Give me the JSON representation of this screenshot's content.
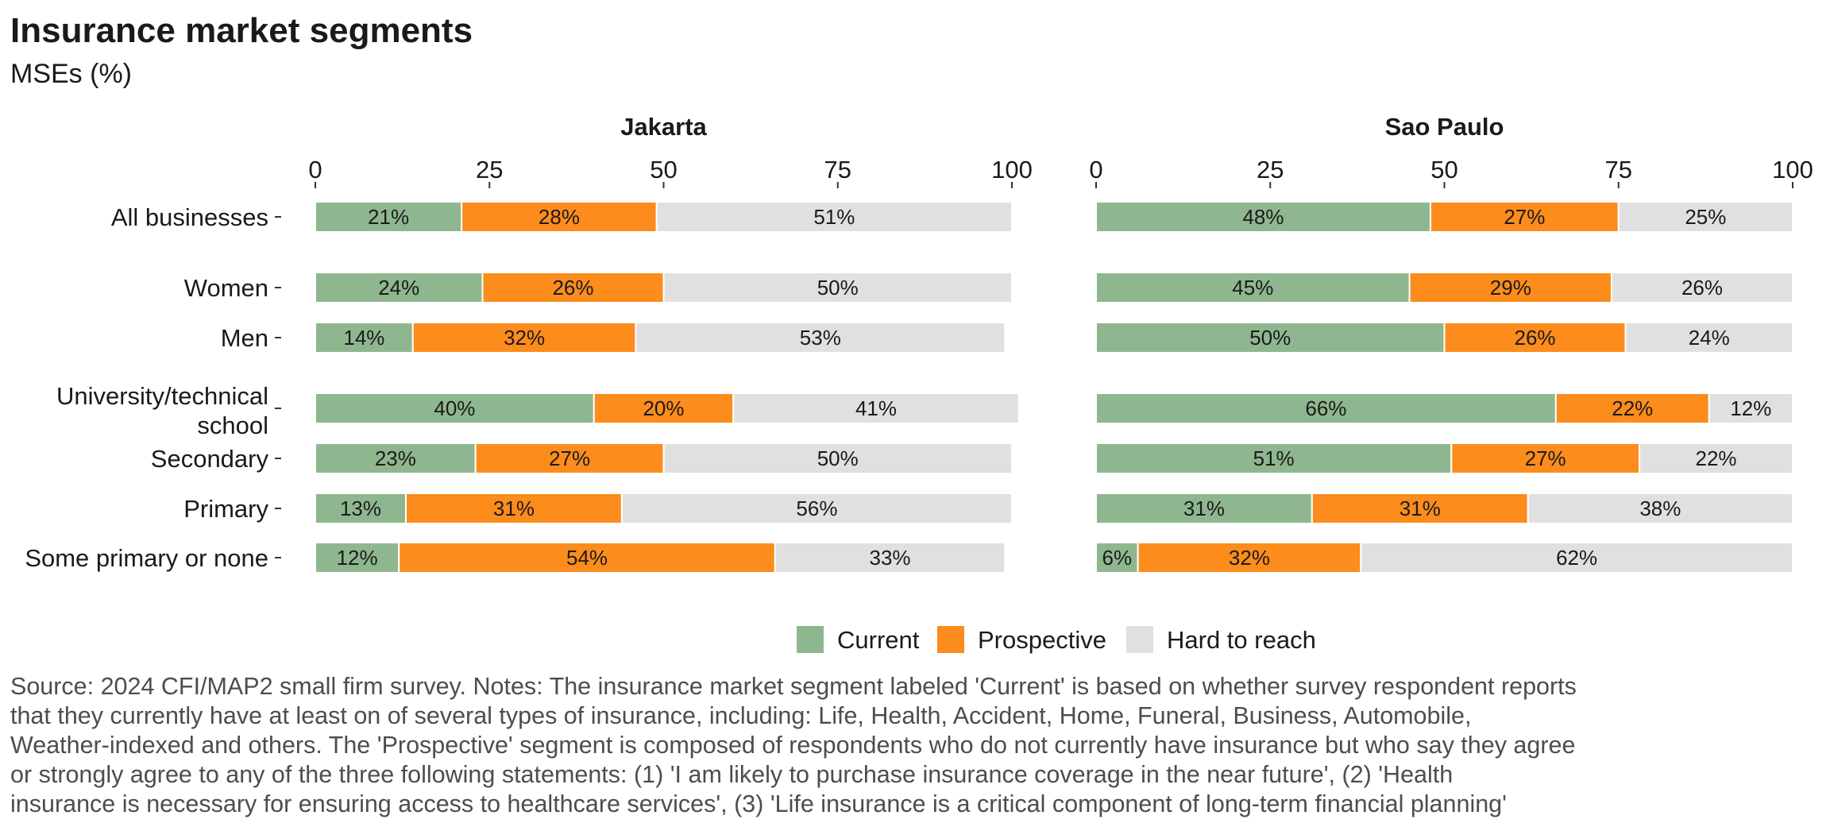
{
  "header": {
    "title": "Insurance market segments",
    "subtitle": "MSEs (%)"
  },
  "chart_data": {
    "type": "bar",
    "orientation": "horizontal",
    "stacked": true,
    "xlim": [
      0,
      100
    ],
    "x_ticks": [
      "0",
      "25",
      "50",
      "75",
      "100"
    ],
    "categories": [
      "All businesses",
      "Women",
      "Men",
      "University/technical school",
      "Secondary",
      "Primary",
      "Some primary or none"
    ],
    "category_lines": [
      [
        "All businesses"
      ],
      [
        "Women"
      ],
      [
        "Men"
      ],
      [
        "University/technical",
        "school"
      ],
      [
        "Secondary"
      ],
      [
        "Primary"
      ],
      [
        "Some primary or none"
      ]
    ],
    "colors": {
      "Current": "#8fb78f",
      "Prospective": "#fc8c1c",
      "Hard to reach": "#e0e0e0"
    },
    "legend": {
      "position": "bottom",
      "entries": [
        "Current",
        "Prospective",
        "Hard to reach"
      ]
    },
    "panels": [
      {
        "name": "Jakarta",
        "series": [
          {
            "name": "Current",
            "values": [
              21,
              24,
              14,
              40,
              23,
              13,
              12
            ]
          },
          {
            "name": "Prospective",
            "values": [
              28,
              26,
              32,
              20,
              27,
              31,
              54
            ]
          },
          {
            "name": "Hard to reach",
            "values": [
              51,
              50,
              53,
              41,
              50,
              56,
              33
            ]
          }
        ]
      },
      {
        "name": "Sao Paulo",
        "series": [
          {
            "name": "Current",
            "values": [
              48,
              45,
              50,
              66,
              51,
              31,
              6
            ]
          },
          {
            "name": "Prospective",
            "values": [
              27,
              29,
              26,
              22,
              27,
              31,
              32
            ]
          },
          {
            "name": "Hard to reach",
            "values": [
              25,
              26,
              24,
              12,
              22,
              38,
              62
            ]
          }
        ]
      }
    ]
  },
  "footer": {
    "note_lines": [
      "Source: 2024 CFI/MAP2 small firm survey. Notes: The insurance market segment labeled 'Current' is based on whether survey respondent reports",
      "that they currently have at least on of several types of insurance, including: Life, Health, Accident, Home, Funeral, Business, Automobile,",
      "Weather-indexed and others. The 'Prospective' segment is composed of respondents who do not currently have insurance but who say they agree",
      "or strongly agree to any of the three following statements: (1) 'I am likely to purchase insurance coverage in the near future', (2) 'Health",
      "insurance is necessary for ensuring access to healthcare services', (3) 'Life insurance is a critical component of long-term financial planning'"
    ]
  }
}
